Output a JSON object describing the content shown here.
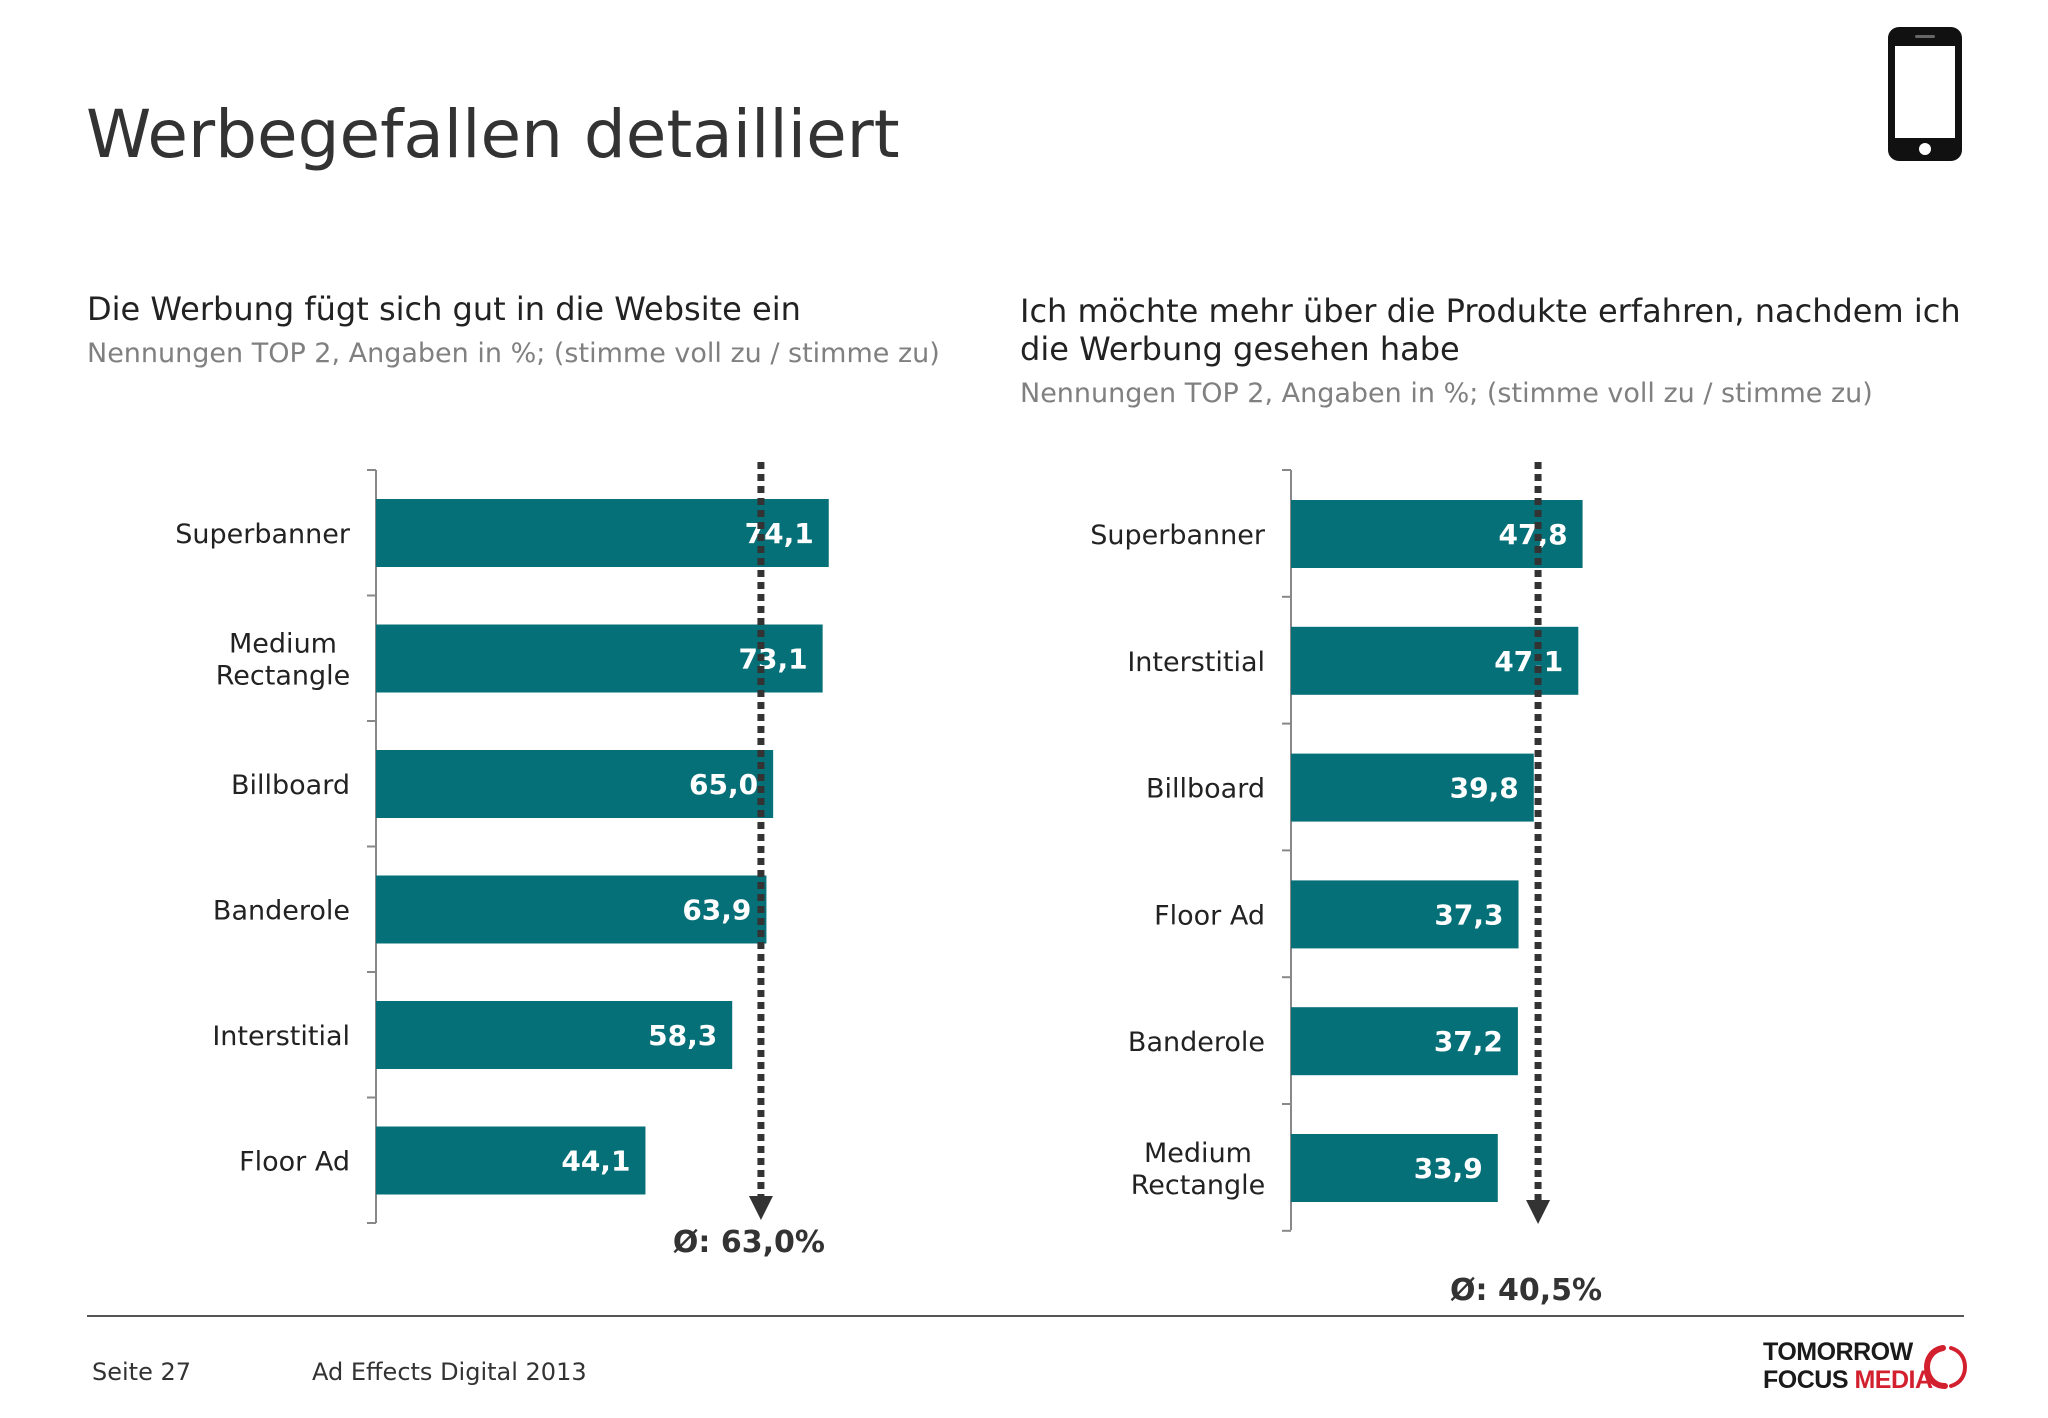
{
  "page": {
    "title": "Werbegefallen detailliert",
    "footer_page": "Seite 27",
    "footer_study": "Ad Effects Digital 2013",
    "logo_line1": "TOMORROW",
    "logo_line2a": "FOCUS",
    "logo_line2b": "MEDIA",
    "icons": [
      "smartphone-icon",
      "logo-ring-icon"
    ]
  },
  "colors": {
    "bar": "#067079",
    "bar_text": "#ffffff",
    "avg_line": "#333333",
    "axis": "#888888",
    "brand_red": "#d2202f"
  },
  "chart_data": [
    {
      "type": "bar",
      "orientation": "horizontal",
      "title": "Die Werbung fügt sich gut in die Website ein",
      "subtitle": "Nennungen TOP 2, Angaben in %; (stimme voll zu / stimme zu)",
      "categories": [
        "Superbanner",
        "Medium\nRectangle",
        "Billboard",
        "Banderole",
        "Interstitial",
        "Floor Ad"
      ],
      "values": [
        74.1,
        73.1,
        65.0,
        63.9,
        58.3,
        44.1
      ],
      "value_labels": [
        "74,1",
        "73,1",
        "65,0",
        "63,9",
        "58,3",
        "44,1"
      ],
      "average": 63.0,
      "average_label": "Ø: 63,0%"
    },
    {
      "type": "bar",
      "orientation": "horizontal",
      "title": "Ich möchte mehr über die Produkte erfahren, nachdem ich die Werbung gesehen habe",
      "subtitle": "Nennungen TOP 2, Angaben in %; (stimme voll zu / stimme zu)",
      "categories": [
        "Superbanner",
        "Interstitial",
        "Billboard",
        "Floor Ad",
        "Banderole",
        "Medium\nRectangle"
      ],
      "values": [
        47.8,
        47.1,
        39.8,
        37.3,
        37.2,
        33.9
      ],
      "value_labels": [
        "47,8",
        "47.1",
        "39,8",
        "37,3",
        "37,2",
        "33,9"
      ],
      "average": 40.5,
      "average_label": "Ø: 40,5%"
    }
  ]
}
